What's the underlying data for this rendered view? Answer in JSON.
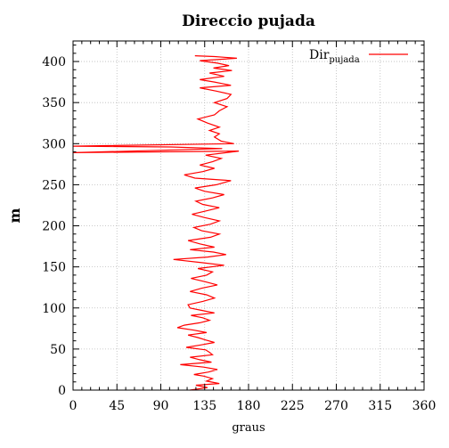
{
  "chart_data": {
    "type": "line",
    "title": "Direccio pujada",
    "xlabel": "graus",
    "ylabel": "m",
    "xlim": [
      0,
      360
    ],
    "ylim": [
      0,
      425
    ],
    "xticks": [
      0,
      45,
      90,
      135,
      180,
      225,
      270,
      315,
      360
    ],
    "yticks": [
      0,
      50,
      100,
      150,
      200,
      250,
      300,
      350,
      400
    ],
    "grid": true,
    "legend_position": "top-right",
    "series": [
      {
        "name": "Dir",
        "name_subscript": "pujada",
        "color": "#ff0000",
        "points": [
          [
            120,
            0
          ],
          [
            138,
            3
          ],
          [
            126,
            6
          ],
          [
            150,
            8
          ],
          [
            137,
            11
          ],
          [
            143,
            14
          ],
          [
            134,
            17
          ],
          [
            124,
            19
          ],
          [
            139,
            22
          ],
          [
            148,
            25
          ],
          [
            134,
            28
          ],
          [
            110,
            31
          ],
          [
            142,
            34
          ],
          [
            130,
            37
          ],
          [
            120,
            40
          ],
          [
            143,
            43
          ],
          [
            140,
            46
          ],
          [
            136,
            49
          ],
          [
            116,
            52
          ],
          [
            131,
            55
          ],
          [
            145,
            58
          ],
          [
            136,
            61
          ],
          [
            128,
            64
          ],
          [
            118,
            67
          ],
          [
            137,
            70
          ],
          [
            124,
            73
          ],
          [
            107,
            76
          ],
          [
            114,
            79
          ],
          [
            130,
            82
          ],
          [
            140,
            85
          ],
          [
            133,
            88
          ],
          [
            121,
            91
          ],
          [
            145,
            94
          ],
          [
            132,
            97
          ],
          [
            120,
            100
          ],
          [
            118,
            104
          ],
          [
            133,
            108
          ],
          [
            145,
            112
          ],
          [
            137,
            116
          ],
          [
            120,
            120
          ],
          [
            132,
            124
          ],
          [
            148,
            128
          ],
          [
            135,
            132
          ],
          [
            121,
            136
          ],
          [
            137,
            140
          ],
          [
            143,
            144
          ],
          [
            128,
            148
          ],
          [
            155,
            152
          ],
          [
            133,
            155
          ],
          [
            103,
            159
          ],
          [
            138,
            162
          ],
          [
            157,
            165
          ],
          [
            144,
            168
          ],
          [
            120,
            171
          ],
          [
            145,
            174
          ],
          [
            130,
            178
          ],
          [
            118,
            182
          ],
          [
            141,
            186
          ],
          [
            150,
            190
          ],
          [
            132,
            194
          ],
          [
            124,
            198
          ],
          [
            141,
            202
          ],
          [
            150,
            206
          ],
          [
            135,
            210
          ],
          [
            122,
            214
          ],
          [
            136,
            218
          ],
          [
            150,
            222
          ],
          [
            133,
            226
          ],
          [
            126,
            230
          ],
          [
            143,
            234
          ],
          [
            155,
            238
          ],
          [
            135,
            242
          ],
          [
            125,
            246
          ],
          [
            147,
            250
          ],
          [
            162,
            255
          ],
          [
            125,
            258
          ],
          [
            114,
            262
          ],
          [
            133,
            266
          ],
          [
            145,
            270
          ],
          [
            130,
            274
          ],
          [
            143,
            278
          ],
          [
            152,
            282
          ],
          [
            136,
            286
          ],
          [
            170,
            291
          ],
          [
            0,
            289
          ],
          [
            153,
            294
          ],
          [
            100,
            296
          ],
          [
            0,
            297
          ],
          [
            165,
            300
          ],
          [
            152,
            303
          ],
          [
            145,
            308
          ],
          [
            150,
            312
          ],
          [
            140,
            316
          ],
          [
            150,
            320
          ],
          [
            138,
            325
          ],
          [
            128,
            330
          ],
          [
            145,
            335
          ],
          [
            150,
            340
          ],
          [
            158,
            345
          ],
          [
            145,
            350
          ],
          [
            158,
            355
          ],
          [
            162,
            360
          ],
          [
            147,
            364
          ],
          [
            130,
            368
          ],
          [
            162,
            371
          ],
          [
            145,
            375
          ],
          [
            130,
            378
          ],
          [
            155,
            382
          ],
          [
            140,
            386
          ],
          [
            163,
            389
          ],
          [
            144,
            392
          ],
          [
            160,
            395
          ],
          [
            148,
            398
          ],
          [
            130,
            401
          ],
          [
            168,
            404
          ],
          [
            145,
            406
          ],
          [
            125,
            407
          ]
        ]
      }
    ]
  }
}
